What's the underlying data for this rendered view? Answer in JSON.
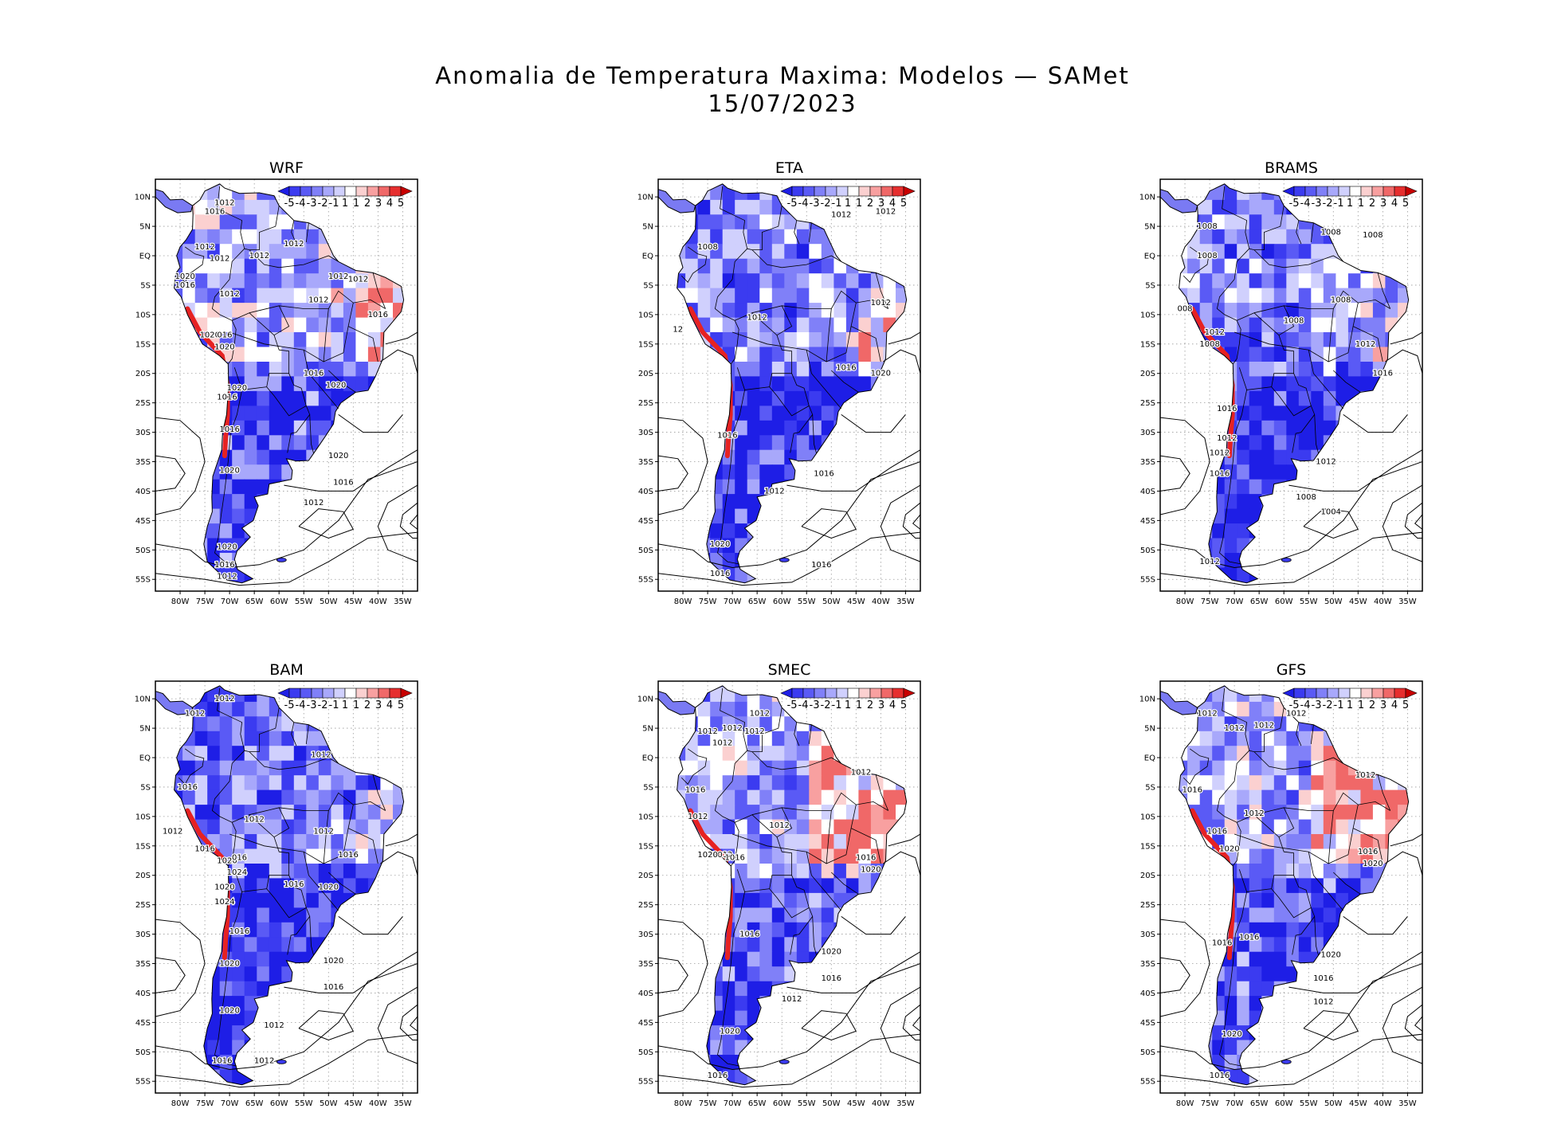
{
  "figure": {
    "title_line1": "Anomalia de Temperatura Maxima: Modelos — SAMet",
    "title_line2": "15/07/2023"
  },
  "axes": {
    "lat_labels": [
      "10N",
      "5N",
      "EQ",
      "5S",
      "10S",
      "15S",
      "20S",
      "25S",
      "30S",
      "35S",
      "40S",
      "45S",
      "50S",
      "55S"
    ],
    "lon_labels": [
      "80W",
      "75W",
      "70W",
      "65W",
      "60W",
      "55W",
      "50W",
      "45W",
      "40W",
      "35W"
    ]
  },
  "colorbar": {
    "labels": [
      "-5",
      "-4",
      "-3",
      "-2",
      "-1",
      "1",
      "1",
      "2",
      "3",
      "4",
      "5"
    ],
    "colors": [
      "#1e1ee6",
      "#3b3bf0",
      "#5a5af5",
      "#8080f8",
      "#a8a8fb",
      "#d0d0fd",
      "#ffffff",
      "#fbd0d0",
      "#f8a0a0",
      "#f06868",
      "#e62e2e",
      "#c80000"
    ]
  },
  "panels": [
    {
      "name": "WRF",
      "isobars": [
        {
          "t": "1012",
          "lon": -71,
          "lat": 9
        },
        {
          "t": "1016",
          "lon": -73,
          "lat": 7.5
        },
        {
          "t": "1012",
          "lon": -75,
          "lat": 1.5
        },
        {
          "t": "1012",
          "lon": -64,
          "lat": 0
        },
        {
          "t": "1012",
          "lon": -72,
          "lat": -0.5
        },
        {
          "t": "1012",
          "lon": -57,
          "lat": 2
        },
        {
          "t": "1020",
          "lon": -79,
          "lat": -3.5
        },
        {
          "t": "1016",
          "lon": -79,
          "lat": -5
        },
        {
          "t": "1012",
          "lon": -70,
          "lat": -6.5
        },
        {
          "t": "1012",
          "lon": -52,
          "lat": -7.5
        },
        {
          "t": "1012",
          "lon": -48,
          "lat": -3.5
        },
        {
          "t": "1012",
          "lon": -44,
          "lat": -4
        },
        {
          "t": "1016",
          "lon": -40,
          "lat": -10
        },
        {
          "t": "1020",
          "lon": -74,
          "lat": -13.5
        },
        {
          "t": "016",
          "lon": -71,
          "lat": -13.5
        },
        {
          "t": "1020",
          "lon": -71,
          "lat": -15.5
        },
        {
          "t": "1016",
          "lon": -53,
          "lat": -20
        },
        {
          "t": "1020",
          "lon": -48.5,
          "lat": -22
        },
        {
          "t": "1020",
          "lon": -68.5,
          "lat": -22.5
        },
        {
          "t": "1016",
          "lon": -70.5,
          "lat": -24
        },
        {
          "t": "1016",
          "lon": -70,
          "lat": -29.5
        },
        {
          "t": "1020",
          "lon": -70,
          "lat": -36.5
        },
        {
          "t": "1020",
          "lon": -48,
          "lat": -34
        },
        {
          "t": "1016",
          "lon": -47,
          "lat": -38.5
        },
        {
          "t": "1012",
          "lon": -53,
          "lat": -42
        },
        {
          "t": "1020",
          "lon": -70.5,
          "lat": -49.5
        },
        {
          "t": "1016",
          "lon": -71,
          "lat": -52.5
        },
        {
          "t": "1012",
          "lon": -70.5,
          "lat": -54.5
        }
      ]
    },
    {
      "name": "ETA",
      "isobars": [
        {
          "t": "1012",
          "lon": -48,
          "lat": 7
        },
        {
          "t": "1012",
          "lon": -39,
          "lat": 7.5
        },
        {
          "t": "1008",
          "lon": -75,
          "lat": 1.5
        },
        {
          "t": "1012",
          "lon": -40,
          "lat": -8
        },
        {
          "t": "12",
          "lon": -81,
          "lat": -12.5
        },
        {
          "t": "1012",
          "lon": -65,
          "lat": -10.5
        },
        {
          "t": "1016",
          "lon": -47,
          "lat": -19
        },
        {
          "t": "1020",
          "lon": -40,
          "lat": -20
        },
        {
          "t": "1016",
          "lon": -71,
          "lat": -30.5
        },
        {
          "t": "1016",
          "lon": -51.5,
          "lat": -37
        },
        {
          "t": "1012",
          "lon": -61.5,
          "lat": -40
        },
        {
          "t": "1020",
          "lon": -72.5,
          "lat": -49
        },
        {
          "t": "1016",
          "lon": -52,
          "lat": -52.5
        },
        {
          "t": "1016",
          "lon": -72.5,
          "lat": -54
        }
      ]
    },
    {
      "name": "BRAMS",
      "isobars": [
        {
          "t": "1008",
          "lon": -75.5,
          "lat": 5
        },
        {
          "t": "1008",
          "lon": -50.5,
          "lat": 4
        },
        {
          "t": "1008",
          "lon": -42,
          "lat": 3.5
        },
        {
          "t": "1008",
          "lon": -75.5,
          "lat": 0
        },
        {
          "t": "1008",
          "lon": -48.5,
          "lat": -7.5
        },
        {
          "t": "008",
          "lon": -80,
          "lat": -9
        },
        {
          "t": "1008",
          "lon": -58,
          "lat": -11
        },
        {
          "t": "1012",
          "lon": -74,
          "lat": -13
        },
        {
          "t": "1008",
          "lon": -75,
          "lat": -15
        },
        {
          "t": "1012",
          "lon": -43.5,
          "lat": -15
        },
        {
          "t": "1016",
          "lon": -40,
          "lat": -20
        },
        {
          "t": "1016",
          "lon": -71.5,
          "lat": -26
        },
        {
          "t": "1012",
          "lon": -71.5,
          "lat": -31
        },
        {
          "t": "1012",
          "lon": -73,
          "lat": -33.5
        },
        {
          "t": "1012",
          "lon": -51.5,
          "lat": -35
        },
        {
          "t": "1016",
          "lon": -73,
          "lat": -37
        },
        {
          "t": "1008",
          "lon": -55.5,
          "lat": -41
        },
        {
          "t": "1004",
          "lon": -50.5,
          "lat": -43.5
        },
        {
          "t": "1012",
          "lon": -75,
          "lat": -52
        }
      ]
    },
    {
      "name": "BAM",
      "isobars": [
        {
          "t": "1012",
          "lon": -71,
          "lat": 10
        },
        {
          "t": "1012",
          "lon": -77,
          "lat": 7.5
        },
        {
          "t": "1012",
          "lon": -51.5,
          "lat": 0.5
        },
        {
          "t": "1016",
          "lon": -78.5,
          "lat": -5
        },
        {
          "t": "1012",
          "lon": -65,
          "lat": -10.5
        },
        {
          "t": "1012",
          "lon": -81.5,
          "lat": -12.5
        },
        {
          "t": "1012",
          "lon": -51,
          "lat": -12.5
        },
        {
          "t": "1016",
          "lon": -75,
          "lat": -15.5
        },
        {
          "t": "1016",
          "lon": -46,
          "lat": -16.5
        },
        {
          "t": "1020",
          "lon": -70.5,
          "lat": -17.5
        },
        {
          "t": "016",
          "lon": -68,
          "lat": -17
        },
        {
          "t": "1024",
          "lon": -68.5,
          "lat": -19.5
        },
        {
          "t": "1016",
          "lon": -57,
          "lat": -21.5
        },
        {
          "t": "1020",
          "lon": -50,
          "lat": -22
        },
        {
          "t": "1020",
          "lon": -71,
          "lat": -22
        },
        {
          "t": "1024",
          "lon": -71,
          "lat": -24.5
        },
        {
          "t": "1016",
          "lon": -68,
          "lat": -29.5
        },
        {
          "t": "1020",
          "lon": -70,
          "lat": -35
        },
        {
          "t": "1020",
          "lon": -49,
          "lat": -34.5
        },
        {
          "t": "1016",
          "lon": -49,
          "lat": -39
        },
        {
          "t": "1020",
          "lon": -70,
          "lat": -43
        },
        {
          "t": "1012",
          "lon": -61,
          "lat": -45.5
        },
        {
          "t": "1012",
          "lon": -63,
          "lat": -51.5
        },
        {
          "t": "1016",
          "lon": -71.5,
          "lat": -51.5
        }
      ]
    },
    {
      "name": "SMEC",
      "isobars": [
        {
          "t": "1012",
          "lon": -64.5,
          "lat": 7.5
        },
        {
          "t": "1012",
          "lon": -70,
          "lat": 5
        },
        {
          "t": "1012",
          "lon": -75,
          "lat": 4.5
        },
        {
          "t": "1012",
          "lon": -65.5,
          "lat": 4.5
        },
        {
          "t": "1012",
          "lon": -72,
          "lat": 2.5
        },
        {
          "t": "1012",
          "lon": -44,
          "lat": -2.5
        },
        {
          "t": "1016",
          "lon": -77.5,
          "lat": -5.5
        },
        {
          "t": "1012",
          "lon": -77,
          "lat": -10
        },
        {
          "t": "1012",
          "lon": -60.5,
          "lat": -11.5
        },
        {
          "t": "1012",
          "lon": -72,
          "lat": -16.5
        },
        {
          "t": "1020",
          "lon": -75,
          "lat": -16.5
        },
        {
          "t": "1016",
          "lon": -69.5,
          "lat": -17
        },
        {
          "t": "1016",
          "lon": -43,
          "lat": -17
        },
        {
          "t": "1020",
          "lon": -42,
          "lat": -19
        },
        {
          "t": "1016",
          "lon": -66.5,
          "lat": -30
        },
        {
          "t": "1020",
          "lon": -50,
          "lat": -33
        },
        {
          "t": "1016",
          "lon": -50,
          "lat": -37.5
        },
        {
          "t": "1012",
          "lon": -58,
          "lat": -41
        },
        {
          "t": "1020",
          "lon": -70.5,
          "lat": -46.5
        },
        {
          "t": "1016",
          "lon": -73,
          "lat": -54
        }
      ]
    },
    {
      "name": "GFS",
      "isobars": [
        {
          "t": "1012",
          "lon": -75.5,
          "lat": 7.5
        },
        {
          "t": "1012",
          "lon": -70,
          "lat": 5
        },
        {
          "t": "1012",
          "lon": -64,
          "lat": 5.5
        },
        {
          "t": "1012",
          "lon": -57.5,
          "lat": 7.5
        },
        {
          "t": "1012",
          "lon": -43.5,
          "lat": -3
        },
        {
          "t": "1016",
          "lon": -78.5,
          "lat": -5.5
        },
        {
          "t": "1012",
          "lon": -66,
          "lat": -9.5
        },
        {
          "t": "1016",
          "lon": -73.5,
          "lat": -12.5
        },
        {
          "t": "1020",
          "lon": -71,
          "lat": -15.5
        },
        {
          "t": "1016",
          "lon": -43,
          "lat": -16
        },
        {
          "t": "1020",
          "lon": -42,
          "lat": -18
        },
        {
          "t": "1016",
          "lon": -67,
          "lat": -30.5
        },
        {
          "t": "1016",
          "lon": -72.5,
          "lat": -31.5
        },
        {
          "t": "1020",
          "lon": -50.5,
          "lat": -33.5
        },
        {
          "t": "1016",
          "lon": -52,
          "lat": -37.5
        },
        {
          "t": "1012",
          "lon": -52,
          "lat": -41.5
        },
        {
          "t": "1020",
          "lon": -70.5,
          "lat": -47
        },
        {
          "t": "1016",
          "lon": -73,
          "lat": -54
        }
      ]
    }
  ]
}
